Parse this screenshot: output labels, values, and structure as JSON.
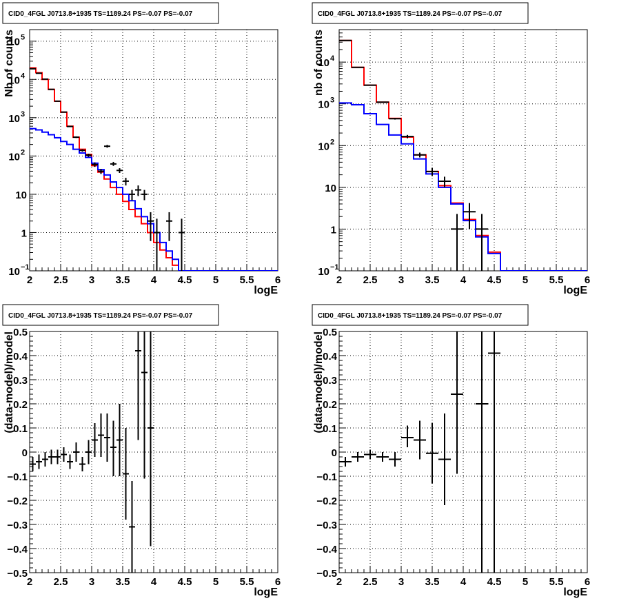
{
  "chart_data": [
    {
      "type": "line",
      "title": "CID0_4FGL J0713.8+1935 TS=1189.24 PS=-0.07 PS=-0.07",
      "xlabel": "logE",
      "ylabel": "Nb of counts",
      "yscale": "log",
      "xlim": [
        2,
        6
      ],
      "ylim": [
        0.1,
        200000
      ],
      "xticks": [
        "2",
        "2.5",
        "3",
        "3.5",
        "4",
        "4.5",
        "5",
        "5.5",
        "6"
      ],
      "yticks": [
        {
          "value": 0.1,
          "label": "10",
          "sup": "−1"
        },
        {
          "value": 1,
          "label": "1",
          "sup": ""
        },
        {
          "value": 10,
          "label": "10",
          "sup": ""
        },
        {
          "value": 100,
          "label": "10",
          "sup": "2"
        },
        {
          "value": 1000,
          "label": "10",
          "sup": "3"
        },
        {
          "value": 10000,
          "label": "10",
          "sup": "4"
        },
        {
          "value": 100000,
          "label": "10",
          "sup": "5"
        }
      ],
      "grid": true,
      "bin_edges_start": 2.0,
      "bin_width": 0.1,
      "series": [
        {
          "color": "#ff0000",
          "style": "hist",
          "values": [
            20000,
            15000,
            10000,
            5500,
            2700,
            1400,
            600,
            310,
            150,
            110,
            56,
            38,
            25,
            15,
            10,
            6.5,
            4,
            2.6,
            1.7,
            1.0,
            0.55,
            0.35,
            0.22,
            0.14,
            0.1,
            0.1,
            0.1,
            0.1,
            0.1,
            0.1,
            0.1,
            0.1,
            0.1,
            0.1,
            0.1,
            0.1,
            0.1,
            0.1,
            0.1,
            0.1
          ]
        },
        {
          "color": "#0000ff",
          "style": "hist",
          "values": [
            520,
            480,
            420,
            360,
            300,
            240,
            200,
            150,
            120,
            92,
            65,
            44,
            32,
            21,
            15,
            10,
            6.8,
            4.2,
            2.6,
            1.7,
            1.0,
            0.55,
            0.33,
            0.2,
            0.1,
            0.1,
            0.1,
            0.1,
            0.1,
            0.1,
            0.1,
            0.1,
            0.1,
            0.1,
            0.1,
            0.1,
            0.1,
            0.1,
            0.1,
            0.1
          ]
        }
      ],
      "points": [
        {
          "x": 2.05,
          "y": 19000,
          "lo": 18700,
          "hi": 19300
        },
        {
          "x": 2.15,
          "y": 14500,
          "lo": 14300,
          "hi": 14700
        },
        {
          "x": 2.25,
          "y": 10200,
          "lo": 10000,
          "hi": 10400
        },
        {
          "x": 2.35,
          "y": 5500,
          "lo": 5400,
          "hi": 5600
        },
        {
          "x": 2.45,
          "y": 2700,
          "lo": 2650,
          "hi": 2750
        },
        {
          "x": 2.55,
          "y": 1400,
          "lo": 1360,
          "hi": 1440
        },
        {
          "x": 2.65,
          "y": 590,
          "lo": 570,
          "hi": 610
        },
        {
          "x": 2.75,
          "y": 310,
          "lo": 295,
          "hi": 325
        },
        {
          "x": 2.85,
          "y": 140,
          "lo": 130,
          "hi": 150
        },
        {
          "x": 2.95,
          "y": 105,
          "lo": 95,
          "hi": 115
        },
        {
          "x": 3.05,
          "y": 60,
          "lo": 52,
          "hi": 68
        },
        {
          "x": 3.15,
          "y": 40,
          "lo": 34,
          "hi": 46
        },
        {
          "x": 3.25,
          "y": 180,
          "lo": 165,
          "hi": 195
        },
        {
          "x": 3.35,
          "y": 62,
          "lo": 55,
          "hi": 70
        },
        {
          "x": 3.45,
          "y": 42,
          "lo": 36,
          "hi": 48
        },
        {
          "x": 3.55,
          "y": 22,
          "lo": 17,
          "hi": 27
        },
        {
          "x": 3.65,
          "y": 10,
          "lo": 7,
          "hi": 13
        },
        {
          "x": 3.75,
          "y": 13,
          "lo": 9,
          "hi": 17
        },
        {
          "x": 3.85,
          "y": 10,
          "lo": 7,
          "hi": 13
        },
        {
          "x": 3.95,
          "y": 2,
          "lo": 0.6,
          "hi": 3.4
        },
        {
          "x": 4.05,
          "y": 1,
          "lo": 0.1,
          "hi": 2.3
        },
        {
          "x": 4.25,
          "y": 2,
          "lo": 0.6,
          "hi": 3.4
        },
        {
          "x": 4.45,
          "y": 1,
          "lo": 0.1,
          "hi": 2.3
        }
      ]
    },
    {
      "type": "line",
      "title": "CID0_4FGL J0713.8+1935 TS=1189.24 PS=-0.07 PS=-0.07",
      "xlabel": "logE",
      "ylabel": "nb of counts",
      "yscale": "log",
      "xlim": [
        2,
        6
      ],
      "ylim": [
        0.1,
        60000
      ],
      "xticks": [
        "2",
        "2.5",
        "3",
        "3.5",
        "4",
        "4.5",
        "5",
        "5.5",
        "6"
      ],
      "yticks": [
        {
          "value": 0.1,
          "label": "10",
          "sup": "−1"
        },
        {
          "value": 1,
          "label": "1",
          "sup": ""
        },
        {
          "value": 10,
          "label": "10",
          "sup": ""
        },
        {
          "value": 100,
          "label": "10",
          "sup": "2"
        },
        {
          "value": 1000,
          "label": "10",
          "sup": "3"
        },
        {
          "value": 10000,
          "label": "10",
          "sup": "4"
        }
      ],
      "grid": true,
      "bin_edges_start": 2.0,
      "bin_width": 0.2,
      "series": [
        {
          "color": "#ff0000",
          "style": "hist",
          "values": [
            33000,
            7500,
            2800,
            1100,
            450,
            160,
            60,
            24,
            11,
            4.2,
            1.7,
            0.7,
            0.28,
            0.1,
            0.1,
            0.1,
            0.1,
            0.1,
            0.1,
            0.1
          ]
        },
        {
          "color": "#0000ff",
          "style": "hist",
          "values": [
            1050,
            950,
            580,
            320,
            180,
            110,
            48,
            21,
            10,
            4.0,
            1.6,
            0.65,
            0.26,
            0.1,
            0.1,
            0.1,
            0.1,
            0.1,
            0.1,
            0.1
          ]
        }
      ],
      "points": [
        {
          "x": 2.1,
          "y": 33000,
          "lo": 32800,
          "hi": 33200
        },
        {
          "x": 2.3,
          "y": 7500,
          "lo": 7400,
          "hi": 7600
        },
        {
          "x": 2.5,
          "y": 2800,
          "lo": 2750,
          "hi": 2850
        },
        {
          "x": 2.7,
          "y": 1100,
          "lo": 1070,
          "hi": 1130
        },
        {
          "x": 2.9,
          "y": 440,
          "lo": 420,
          "hi": 460
        },
        {
          "x": 3.1,
          "y": 165,
          "lo": 150,
          "hi": 180
        },
        {
          "x": 3.3,
          "y": 60,
          "lo": 52,
          "hi": 68
        },
        {
          "x": 3.5,
          "y": 24,
          "lo": 19,
          "hi": 29
        },
        {
          "x": 3.7,
          "y": 14,
          "lo": 10,
          "hi": 18
        },
        {
          "x": 3.9,
          "y": 1,
          "lo": 0.1,
          "hi": 2.3
        },
        {
          "x": 4.1,
          "y": 2.6,
          "lo": 1,
          "hi": 4.2
        },
        {
          "x": 4.3,
          "y": 1,
          "lo": 0.1,
          "hi": 2.3
        }
      ]
    },
    {
      "type": "scatter",
      "title": "CID0_4FGL J0713.8+1935 TS=1189.24 PS=-0.07 PS=-0.07",
      "xlabel": "logE",
      "ylabel": "(data-model)/model",
      "yscale": "linear",
      "xlim": [
        2,
        6
      ],
      "ylim": [
        -0.5,
        0.5
      ],
      "xticks": [
        "2",
        "2.5",
        "3",
        "3.5",
        "4",
        "4.5",
        "5",
        "5.5",
        "6"
      ],
      "yticks": [
        "−0.5",
        "−0.4",
        "−0.3",
        "−0.2",
        "−0.1",
        "0",
        "0.1",
        "0.2",
        "0.3",
        "0.4",
        "0.5"
      ],
      "ytick_values": [
        -0.5,
        -0.4,
        -0.3,
        -0.2,
        -0.1,
        0,
        0.1,
        0.2,
        0.3,
        0.4,
        0.5
      ],
      "grid": true,
      "bin_width": 0.1,
      "points": [
        {
          "x": 2.05,
          "y": -0.05,
          "lo": -0.08,
          "hi": -0.02
        },
        {
          "x": 2.15,
          "y": -0.04,
          "lo": -0.07,
          "hi": -0.01
        },
        {
          "x": 2.25,
          "y": -0.03,
          "lo": -0.06,
          "hi": 0.0
        },
        {
          "x": 2.35,
          "y": -0.02,
          "lo": -0.05,
          "hi": 0.01
        },
        {
          "x": 2.45,
          "y": -0.02,
          "lo": -0.05,
          "hi": 0.01
        },
        {
          "x": 2.55,
          "y": -0.01,
          "lo": -0.04,
          "hi": 0.02
        },
        {
          "x": 2.65,
          "y": -0.04,
          "lo": -0.07,
          "hi": -0.01
        },
        {
          "x": 2.75,
          "y": 0.0,
          "lo": -0.04,
          "hi": 0.04
        },
        {
          "x": 2.85,
          "y": -0.05,
          "lo": -0.08,
          "hi": -0.02
        },
        {
          "x": 2.95,
          "y": 0.0,
          "lo": -0.05,
          "hi": 0.05
        },
        {
          "x": 3.05,
          "y": 0.05,
          "lo": -0.02,
          "hi": 0.12
        },
        {
          "x": 3.15,
          "y": 0.07,
          "lo": -0.02,
          "hi": 0.16
        },
        {
          "x": 3.25,
          "y": 0.06,
          "lo": -0.04,
          "hi": 0.16
        },
        {
          "x": 3.35,
          "y": 0.02,
          "lo": -0.1,
          "hi": 0.13
        },
        {
          "x": 3.45,
          "y": 0.05,
          "lo": -0.1,
          "hi": 0.2
        },
        {
          "x": 3.55,
          "y": -0.09,
          "lo": -0.28,
          "hi": 0.1
        },
        {
          "x": 3.65,
          "y": -0.31,
          "lo": -0.5,
          "hi": -0.12
        },
        {
          "x": 3.75,
          "y": 0.42,
          "lo": 0.05,
          "hi": 0.5
        },
        {
          "x": 3.85,
          "y": 0.33,
          "lo": -0.11,
          "hi": 0.5
        },
        {
          "x": 3.95,
          "y": 0.1,
          "lo": -0.39,
          "hi": 0.5
        }
      ]
    },
    {
      "type": "scatter",
      "title": "CID0_4FGL J0713.8+1935 TS=1189.24 PS=-0.07 PS=-0.07",
      "xlabel": "logE",
      "ylabel": "(data-model)/model",
      "yscale": "linear",
      "xlim": [
        2,
        6
      ],
      "ylim": [
        -0.5,
        0.5
      ],
      "xticks": [
        "2",
        "2.5",
        "3",
        "3.5",
        "4",
        "4.5",
        "5",
        "5.5",
        "6"
      ],
      "yticks": [
        "−0.5",
        "−0.4",
        "−0.3",
        "−0.2",
        "−0.1",
        "0",
        "0.1",
        "0.2",
        "0.3",
        "0.4",
        "0.5"
      ],
      "ytick_values": [
        -0.5,
        -0.4,
        -0.3,
        -0.2,
        -0.1,
        0,
        0.1,
        0.2,
        0.3,
        0.4,
        0.5
      ],
      "grid": true,
      "bin_width": 0.2,
      "points": [
        {
          "x": 2.1,
          "y": -0.04,
          "lo": -0.06,
          "hi": -0.02
        },
        {
          "x": 2.3,
          "y": -0.02,
          "lo": -0.04,
          "hi": 0.0
        },
        {
          "x": 2.5,
          "y": -0.01,
          "lo": -0.03,
          "hi": 0.01
        },
        {
          "x": 2.7,
          "y": -0.02,
          "lo": -0.04,
          "hi": 0.0
        },
        {
          "x": 2.9,
          "y": -0.03,
          "lo": -0.06,
          "hi": 0.0
        },
        {
          "x": 3.1,
          "y": 0.06,
          "lo": 0.02,
          "hi": 0.11
        },
        {
          "x": 3.3,
          "y": 0.05,
          "lo": -0.03,
          "hi": 0.13
        },
        {
          "x": 3.5,
          "y": -0.005,
          "lo": -0.13,
          "hi": 0.12
        },
        {
          "x": 3.7,
          "y": -0.03,
          "lo": -0.22,
          "hi": 0.16
        },
        {
          "x": 3.9,
          "y": 0.24,
          "lo": -0.09,
          "hi": 0.5
        },
        {
          "x": 4.3,
          "y": 0.2,
          "lo": -0.5,
          "hi": 0.5
        },
        {
          "x": 4.5,
          "y": 0.41,
          "lo": -0.5,
          "hi": 0.5
        }
      ]
    }
  ]
}
